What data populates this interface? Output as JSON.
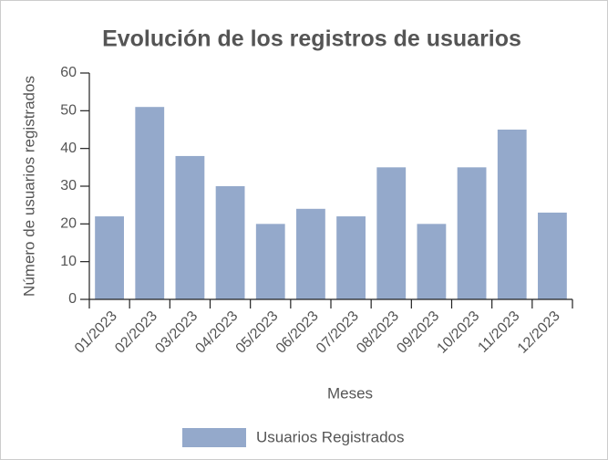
{
  "chart_data": {
    "type": "bar",
    "title": "Evolución de los registros de usuarios",
    "x_label": "Meses",
    "y_label": "Número de usuarios registrados",
    "categories": [
      "01/2023",
      "02/2023",
      "03/2023",
      "04/2023",
      "05/2023",
      "06/2023",
      "07/2023",
      "08/2023",
      "09/2023",
      "10/2023",
      "11/2023",
      "12/2023"
    ],
    "series": [
      {
        "name": "Usuarios Registrados",
        "color": "#94a9cb",
        "values": [
          22,
          51,
          38,
          30,
          20,
          24,
          22,
          35,
          20,
          35,
          45,
          23
        ]
      }
    ],
    "ylim": [
      0,
      60
    ],
    "yticks": [
      0,
      10,
      20,
      30,
      40,
      50,
      60
    ],
    "legend": "bottom"
  }
}
